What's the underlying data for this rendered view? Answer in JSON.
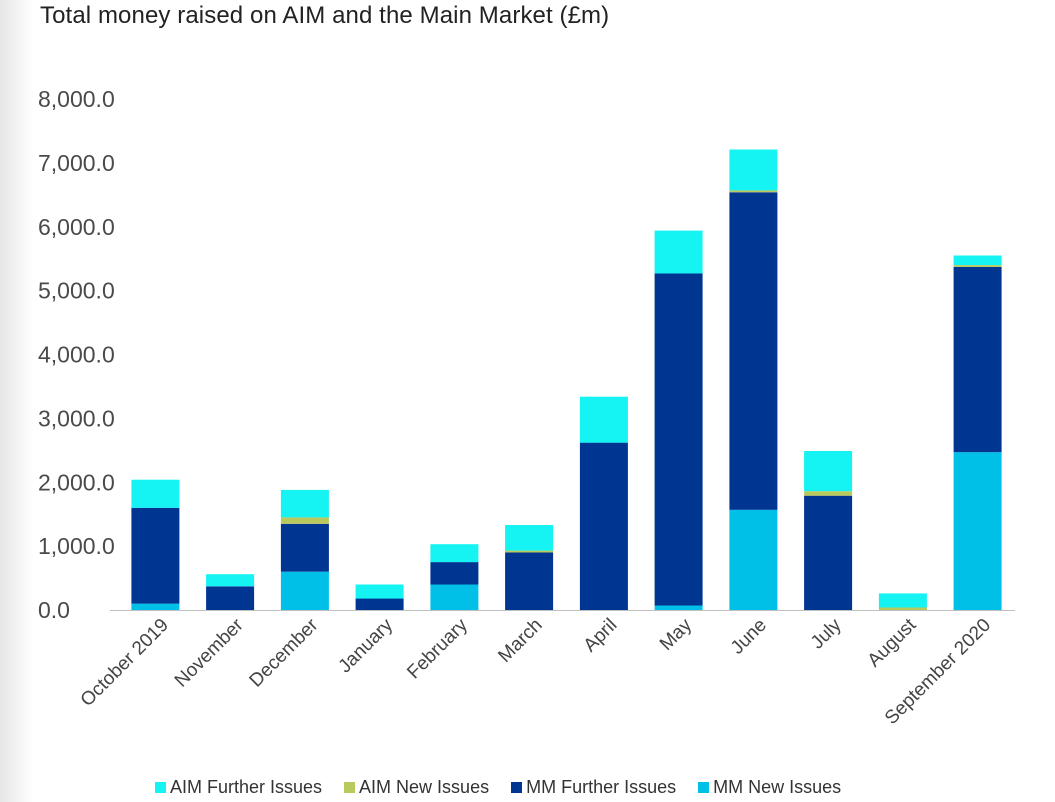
{
  "chart_data": {
    "type": "bar",
    "stacked": true,
    "title": "Total money raised on AIM and the Main Market (£m)",
    "xlabel": "",
    "ylabel": "",
    "ylim": [
      0,
      8000
    ],
    "yticks": [
      "0.0",
      "1,000.0",
      "2,000.0",
      "3,000.0",
      "4,000.0",
      "5,000.0",
      "6,000.0",
      "7,000.0",
      "8,000.0"
    ],
    "grid": false,
    "legend_position": "bottom",
    "categories": [
      "October 2019",
      "November",
      "December",
      "January",
      "February",
      "March",
      "April",
      "May",
      "June",
      "July",
      "August",
      "September 2020"
    ],
    "series": [
      {
        "name": "MM New Issues",
        "color": "#00c0e8",
        "values": [
          100,
          0,
          600,
          0,
          400,
          0,
          0,
          70,
          1570,
          0,
          0,
          2470
        ]
      },
      {
        "name": "MM Further Issues",
        "color": "#003591",
        "values": [
          1500,
          370,
          750,
          180,
          350,
          900,
          2620,
          5200,
          4970,
          1790,
          0,
          2900
        ]
      },
      {
        "name": "AIM New Issues",
        "color": "#b9c95e",
        "values": [
          0,
          0,
          100,
          0,
          0,
          30,
          0,
          0,
          30,
          70,
          40,
          30
        ]
      },
      {
        "name": "AIM Further Issues",
        "color": "#15f3f3",
        "values": [
          440,
          190,
          430,
          220,
          280,
          400,
          720,
          670,
          640,
          630,
          220,
          150
        ]
      }
    ],
    "legend_order": [
      "AIM Further Issues",
      "AIM New Issues",
      "MM Further Issues",
      "MM New Issues"
    ]
  }
}
